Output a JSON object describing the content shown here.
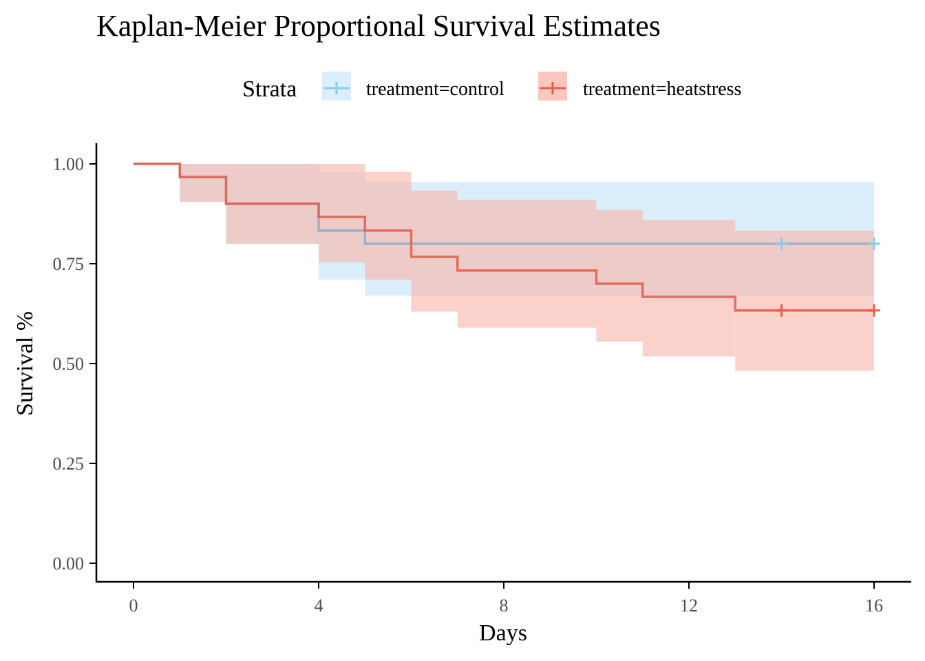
{
  "chart_data": {
    "type": "line",
    "title": "Kaplan-Meier Proportional Survival Estimates",
    "xlabel": "Days",
    "ylabel": "Survival %",
    "xlim": [
      0,
      16
    ],
    "ylim": [
      0,
      1
    ],
    "x_ticks": [
      0,
      4,
      8,
      12,
      16
    ],
    "x_tick_labels": [
      "0",
      "4",
      "8",
      "12",
      "16"
    ],
    "y_ticks": [
      0,
      0.25,
      0.5,
      0.75,
      1.0
    ],
    "y_tick_labels": [
      "0.00",
      "0.25",
      "0.50",
      "0.75",
      "1.00"
    ],
    "legend": {
      "title": "Strata",
      "position": "top",
      "entries": [
        "treatment=control",
        "treatment=heatstress"
      ]
    },
    "grid": false,
    "series": [
      {
        "name": "treatment=control",
        "color": "#87ceeb",
        "fill": "#cfe8fa",
        "steps": [
          {
            "x": 0,
            "y": 1.0,
            "lower": 1.0,
            "upper": 1.0
          },
          {
            "x": 1,
            "y": 0.967,
            "lower": 0.905,
            "upper": 1.0
          },
          {
            "x": 2,
            "y": 0.9,
            "lower": 0.8,
            "upper": 1.0
          },
          {
            "x": 4,
            "y": 0.833,
            "lower": 0.71,
            "upper": 0.98
          },
          {
            "x": 5,
            "y": 0.8,
            "lower": 0.67,
            "upper": 0.955
          },
          {
            "x": 16,
            "y": 0.8,
            "lower": 0.67,
            "upper": 0.955
          }
        ],
        "censor_x": [
          14,
          16
        ]
      },
      {
        "name": "treatment=heatstress",
        "color": "#e4604a",
        "fill": "#f7b4a8",
        "steps": [
          {
            "x": 0,
            "y": 1.0,
            "lower": 1.0,
            "upper": 1.0
          },
          {
            "x": 1,
            "y": 0.967,
            "lower": 0.905,
            "upper": 1.0
          },
          {
            "x": 2,
            "y": 0.9,
            "lower": 0.8,
            "upper": 1.0
          },
          {
            "x": 4,
            "y": 0.867,
            "lower": 0.753,
            "upper": 1.0
          },
          {
            "x": 5,
            "y": 0.833,
            "lower": 0.71,
            "upper": 0.98
          },
          {
            "x": 6,
            "y": 0.767,
            "lower": 0.63,
            "upper": 0.933
          },
          {
            "x": 7,
            "y": 0.733,
            "lower": 0.59,
            "upper": 0.91
          },
          {
            "x": 10,
            "y": 0.7,
            "lower": 0.555,
            "upper": 0.885
          },
          {
            "x": 11,
            "y": 0.667,
            "lower": 0.518,
            "upper": 0.86
          },
          {
            "x": 13,
            "y": 0.633,
            "lower": 0.482,
            "upper": 0.833
          },
          {
            "x": 16,
            "y": 0.633,
            "lower": 0.482,
            "upper": 0.833
          }
        ],
        "censor_x": [
          14,
          16
        ]
      }
    ]
  }
}
